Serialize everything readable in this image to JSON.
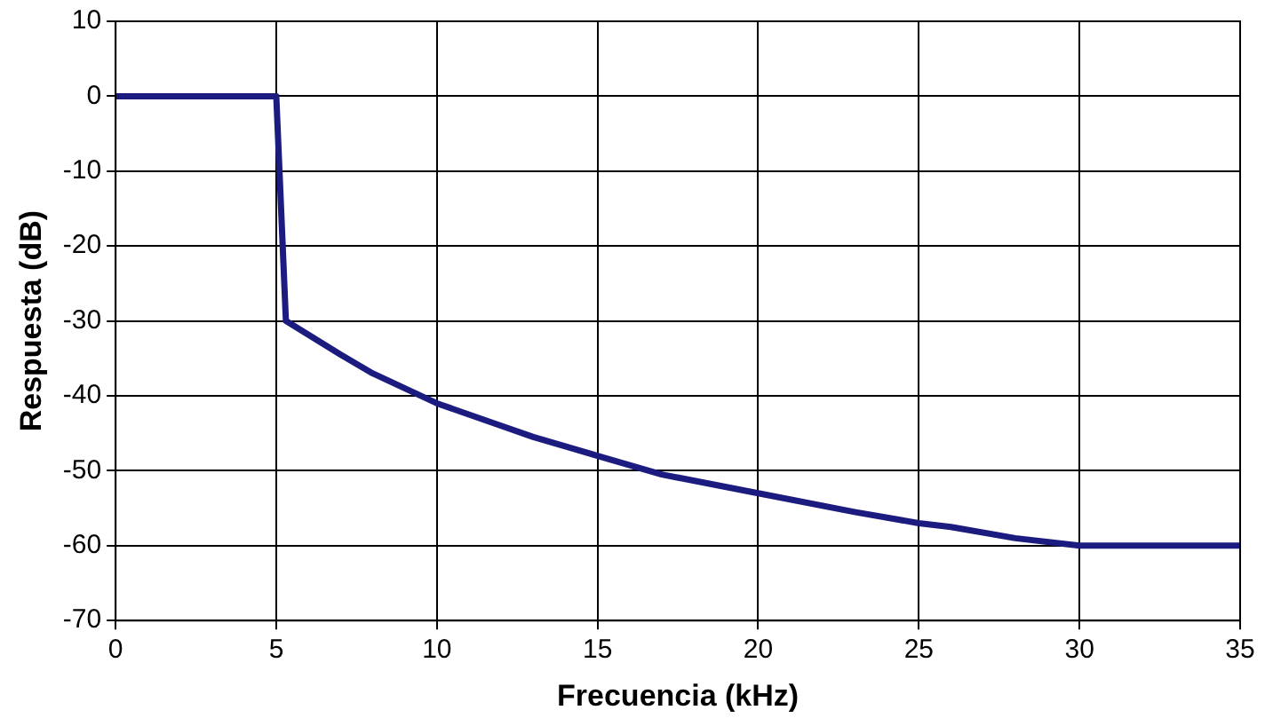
{
  "chart_data": {
    "type": "line",
    "xlabel": "Frecuencia (kHz)",
    "ylabel": "Respuesta (dB)",
    "x": [
      0,
      5,
      5.3,
      7,
      8,
      10,
      12,
      13,
      15,
      17,
      20,
      23,
      25,
      26,
      28,
      30,
      35
    ],
    "series": [
      {
        "color": "#1c1c80",
        "values": [
          0,
          0,
          -30,
          -34.5,
          -37,
          -41,
          -44,
          -45.5,
          -48,
          -50.5,
          -53,
          -55.5,
          -57,
          -57.5,
          -59,
          -60,
          -60
        ]
      }
    ],
    "xlim": [
      0,
      35
    ],
    "xticks": [
      0,
      5,
      10,
      15,
      20,
      25,
      30,
      35
    ],
    "ylim": [
      -70,
      10
    ],
    "yticks": [
      -70,
      -60,
      -50,
      -40,
      -30,
      -20,
      -10,
      0,
      10
    ],
    "grid": true,
    "legend": false,
    "marker": "none",
    "line_style": "solid"
  }
}
